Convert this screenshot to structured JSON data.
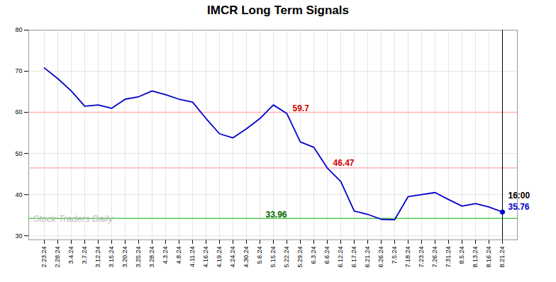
{
  "chart_data": {
    "type": "line",
    "title": "IMCR Long Term Signals",
    "categories": [
      "2.23.24",
      "2.28.24",
      "3.4.24",
      "3.7.24",
      "3.12.24",
      "3.15.24",
      "3.20.24",
      "3.25.24",
      "3.28.24",
      "4.3.24",
      "4.8.24",
      "4.11.24",
      "4.16.24",
      "4.19.24",
      "4.24.24",
      "4.30.24",
      "5.6.24",
      "5.15.24",
      "5.22.24",
      "5.29.24",
      "6.3.24",
      "6.6.24",
      "6.12.24",
      "6.17.24",
      "6.21.24",
      "6.26.24",
      "7.5.24",
      "7.18.24",
      "7.23.24",
      "7.26.24",
      "7.31.24",
      "8.5.24",
      "8.13.24",
      "8.16.24",
      "8.21.24"
    ],
    "values": [
      70.8,
      68.2,
      65.2,
      61.5,
      61.8,
      61.0,
      63.2,
      63.8,
      65.2,
      64.3,
      63.2,
      62.5,
      58.5,
      54.8,
      53.8,
      56.0,
      58.5,
      61.8,
      59.7,
      52.8,
      51.5,
      46.47,
      43.2,
      36.0,
      35.2,
      34.0,
      33.9,
      39.5,
      40.0,
      40.5,
      38.8,
      37.2,
      37.8,
      37.0,
      35.76
    ],
    "color": "#0000cc",
    "ylim": [
      29,
      80
    ],
    "yticks": [
      30,
      40,
      50,
      60,
      70,
      80
    ],
    "grid": true,
    "reference_lines": [
      {
        "y": 60.0,
        "color": "#ffb3b3"
      },
      {
        "y": 46.5,
        "color": "#ffb3b3"
      },
      {
        "y": 34.2,
        "color": "#55cc55"
      }
    ],
    "annotations": [
      {
        "text": "59.7",
        "x": "5.22.24",
        "y": 59.7,
        "color": "#cc0000"
      },
      {
        "text": "46.47",
        "x": "6.6.24",
        "y": 46.47,
        "color": "#cc0000"
      },
      {
        "text": "33.96",
        "x": "5.6.24",
        "y": 33.96,
        "color": "#006600"
      },
      {
        "text": "16:00",
        "x": "8.21.24",
        "y": 35.76,
        "color": "#000000"
      },
      {
        "text": "35.76",
        "x": "8.21.24",
        "y": 35.76,
        "color": "#0000cc"
      }
    ],
    "watermark": "Stock Traders Daily"
  }
}
